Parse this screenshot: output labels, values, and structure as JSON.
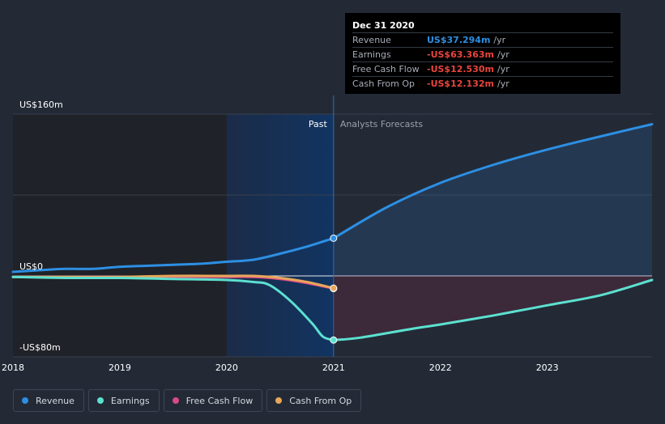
{
  "chart_data": {
    "type": "line",
    "y_unit": "US$ millions",
    "ylim": [
      -80,
      160
    ],
    "y_ticks": [
      {
        "value": 160,
        "label": "US$160m"
      },
      {
        "value": 0,
        "label": "US$0"
      },
      {
        "value": -80,
        "label": "-US$80m"
      }
    ],
    "xlim": [
      2018,
      2023.98
    ],
    "x_ticks": [
      {
        "value": 2018,
        "label": "2018"
      },
      {
        "value": 2019,
        "label": "2019"
      },
      {
        "value": 2020,
        "label": "2020"
      },
      {
        "value": 2021,
        "label": "2021"
      },
      {
        "value": 2022,
        "label": "2022"
      },
      {
        "value": 2023,
        "label": "2023"
      }
    ],
    "past_label": "Past",
    "forecast_label": "Analysts Forecasts",
    "divider_x": 2021,
    "highlight_start_x": 2020,
    "series": [
      {
        "name": "Revenue",
        "color": "#2d8fe3",
        "points": [
          [
            2018,
            4
          ],
          [
            2018.3,
            6
          ],
          [
            2018.5,
            7
          ],
          [
            2018.75,
            7
          ],
          [
            2019,
            9
          ],
          [
            2019.25,
            10
          ],
          [
            2019.5,
            11
          ],
          [
            2019.75,
            12
          ],
          [
            2020,
            14
          ],
          [
            2020.25,
            16
          ],
          [
            2020.5,
            22
          ],
          [
            2020.75,
            29
          ],
          [
            2021,
            37.3
          ]
        ],
        "forecast": [
          [
            2021,
            37.3
          ],
          [
            2021.5,
            68
          ],
          [
            2022,
            92
          ],
          [
            2022.5,
            110
          ],
          [
            2023,
            125
          ],
          [
            2023.5,
            138
          ],
          [
            2023.98,
            150
          ]
        ]
      },
      {
        "name": "Earnings",
        "color": "#5ce0d0",
        "points": [
          [
            2018,
            -1
          ],
          [
            2018.5,
            -2
          ],
          [
            2019,
            -2
          ],
          [
            2019.5,
            -3
          ],
          [
            2020,
            -4
          ],
          [
            2020.25,
            -6
          ],
          [
            2020.4,
            -9
          ],
          [
            2020.6,
            -25
          ],
          [
            2020.8,
            -47
          ],
          [
            2020.9,
            -60
          ],
          [
            2021,
            -63.4
          ]
        ],
        "forecast": [
          [
            2021,
            -63.4
          ],
          [
            2021.25,
            -61
          ],
          [
            2021.75,
            -52
          ],
          [
            2022,
            -48
          ],
          [
            2022.5,
            -39
          ],
          [
            2023,
            -29
          ],
          [
            2023.5,
            -19
          ],
          [
            2023.98,
            -4
          ]
        ]
      },
      {
        "name": "Free Cash Flow",
        "color": "#d94a8a",
        "points": [
          [
            2018,
            -1
          ],
          [
            2018.5,
            -1
          ],
          [
            2019,
            -1
          ],
          [
            2019.5,
            -1
          ],
          [
            2020,
            -1
          ],
          [
            2020.25,
            -1
          ],
          [
            2020.5,
            -3
          ],
          [
            2020.75,
            -7
          ],
          [
            2021,
            -12.5
          ]
        ],
        "forecast": []
      },
      {
        "name": "Cash From Op",
        "color": "#e8a65a",
        "points": [
          [
            2018,
            -1
          ],
          [
            2018.5,
            -1
          ],
          [
            2019,
            -1
          ],
          [
            2019.5,
            0
          ],
          [
            2020,
            0
          ],
          [
            2020.25,
            0
          ],
          [
            2020.5,
            -2
          ],
          [
            2020.75,
            -6
          ],
          [
            2021,
            -12.1
          ]
        ],
        "forecast": []
      }
    ]
  },
  "tooltip": {
    "date": "Dec 31 2020",
    "unit": "/yr",
    "rows": [
      {
        "label": "Revenue",
        "value": "US$37.294m",
        "color": "#2d8fe3"
      },
      {
        "label": "Earnings",
        "value": "-US$63.363m",
        "color": "#e9453d"
      },
      {
        "label": "Free Cash Flow",
        "value": "-US$12.530m",
        "color": "#e9453d"
      },
      {
        "label": "Cash From Op",
        "value": "-US$12.132m",
        "color": "#e9453d"
      }
    ]
  },
  "legend": [
    {
      "label": "Revenue",
      "color": "#2d8fe3"
    },
    {
      "label": "Earnings",
      "color": "#5ce0d0"
    },
    {
      "label": "Free Cash Flow",
      "color": "#d94a8a"
    },
    {
      "label": "Cash From Op",
      "color": "#e8a65a"
    }
  ]
}
